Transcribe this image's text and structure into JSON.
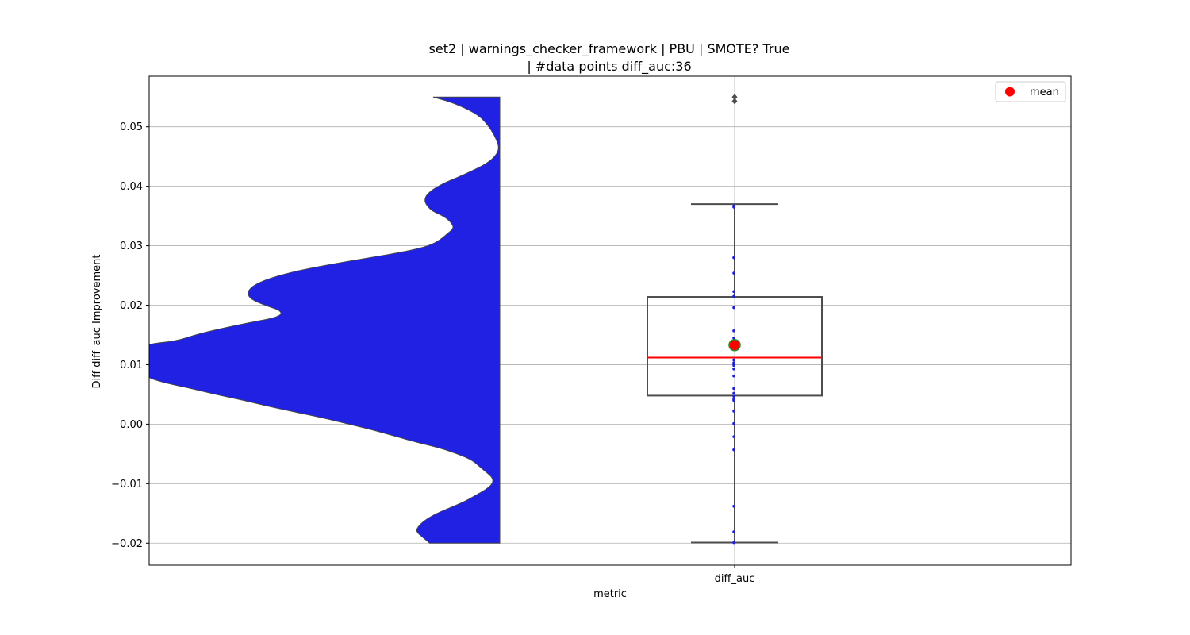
{
  "chart_data": {
    "type": "box",
    "title_line1": "set2 | warnings_checker_framework | PBU | SMOTE? True",
    "title_line2": "| #data points diff_auc:36",
    "xlabel": "metric",
    "ylabel": "Diff diff_auc Improvement",
    "categories": [
      "diff_auc"
    ],
    "ylim": [
      -0.0237,
      0.0585
    ],
    "yticks": [
      -0.02,
      -0.01,
      0.0,
      0.01,
      0.02,
      0.03,
      0.04,
      0.05
    ],
    "ytick_labels": [
      "−0.02",
      "−0.01",
      "0.00",
      "0.01",
      "0.02",
      "0.03",
      "0.04",
      "0.05"
    ],
    "grid": true,
    "legend": {
      "placement": "top-right",
      "entries": [
        {
          "label": "mean",
          "color": "#ff0000"
        }
      ]
    },
    "box": {
      "q1": 0.0048,
      "median": 0.0112,
      "q3": 0.0214,
      "whisker_low": -0.0199,
      "whisker_high": 0.037,
      "mean": 0.0133,
      "outliers": [
        0.0543,
        0.055
      ]
    },
    "points": [
      0.0367,
      0.0365,
      0.028,
      0.0254,
      0.0223,
      0.0215,
      0.0196,
      0.0157,
      0.0145,
      0.0132,
      0.0127,
      0.0108,
      0.0103,
      0.0099,
      0.0093,
      0.0081,
      0.006,
      0.0052,
      0.0047,
      0.0042,
      0.004,
      0.0022,
      0.0001,
      -0.0021,
      -0.0043,
      -0.0138,
      -0.0181,
      -0.0199
    ],
    "violin": {
      "y": [
        0.055,
        0.054,
        0.052,
        0.05,
        0.048,
        0.046,
        0.044,
        0.042,
        0.04,
        0.038,
        0.036,
        0.035,
        0.034,
        0.033,
        0.032,
        0.031,
        0.03,
        0.029,
        0.028,
        0.027,
        0.026,
        0.025,
        0.024,
        0.023,
        0.022,
        0.021,
        0.02,
        0.019,
        0.018,
        0.017,
        0.016,
        0.015,
        0.014,
        0.0135,
        0.013,
        0.012,
        0.011,
        0.01,
        0.009,
        0.008,
        0.0078,
        0.007,
        0.006,
        0.005,
        0.004,
        0.003,
        0.002,
        0.001,
        0.0,
        -0.001,
        -0.002,
        -0.003,
        -0.004,
        -0.005,
        -0.006,
        -0.007,
        -0.008,
        -0.009,
        -0.01,
        -0.011,
        -0.012,
        -0.013,
        -0.014,
        -0.015,
        -0.016,
        -0.017,
        -0.018,
        -0.019,
        -0.02
      ],
      "density": [
        0.19,
        0.13,
        0.06,
        0.03,
        0.01,
        0.0,
        0.03,
        0.1,
        0.18,
        0.22,
        0.2,
        0.16,
        0.14,
        0.13,
        0.15,
        0.17,
        0.2,
        0.27,
        0.37,
        0.47,
        0.56,
        0.63,
        0.68,
        0.71,
        0.72,
        0.71,
        0.67,
        0.62,
        0.63,
        0.72,
        0.8,
        0.87,
        0.92,
        1.0,
        1.0,
        1.0,
        1.0,
        1.0,
        1.0,
        1.0,
        1.0,
        0.96,
        0.88,
        0.81,
        0.73,
        0.66,
        0.58,
        0.5,
        0.43,
        0.36,
        0.3,
        0.24,
        0.17,
        0.12,
        0.08,
        0.06,
        0.04,
        0.02,
        0.02,
        0.04,
        0.07,
        0.1,
        0.14,
        0.18,
        0.21,
        0.23,
        0.24,
        0.22,
        0.2
      ]
    }
  }
}
